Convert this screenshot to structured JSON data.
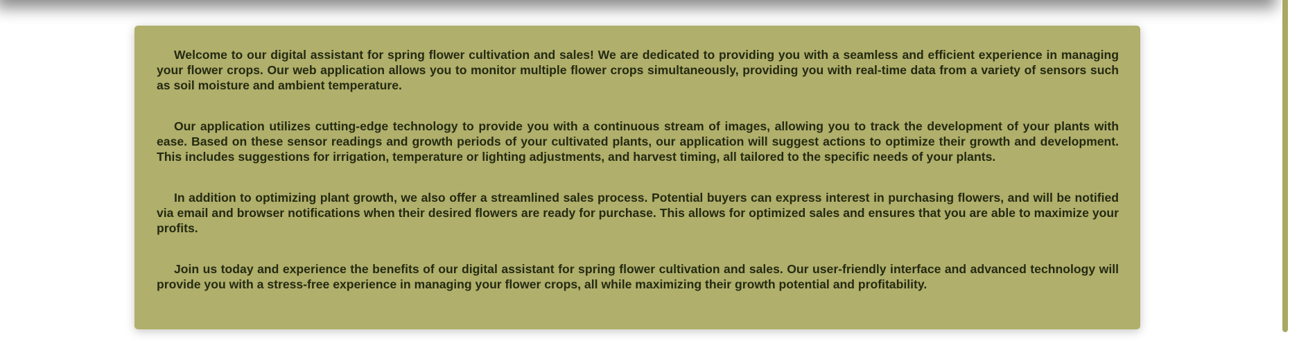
{
  "colors": {
    "card_background": "#b0af6b",
    "text": "#242a12",
    "scrollbar_thumb": "#aaa861"
  },
  "intro": {
    "paragraphs": [
      "Welcome to our digital assistant for spring flower cultivation and sales! We are dedicated to providing you with a seamless and efficient experience in managing your flower crops. Our web application allows you to monitor multiple flower crops simultaneously, providing you with real-time data from a variety of sensors such as soil moisture and ambient temperature.",
      "Our application utilizes cutting-edge technology to provide you with a continuous stream of images, allowing you to track the development of your plants with ease. Based on these sensor readings and growth periods of your cultivated plants, our application will suggest actions to optimize their growth and development. This includes suggestions for irrigation, temperature or lighting adjustments, and harvest timing, all tailored to the specific needs of your plants.",
      "In addition to optimizing plant growth, we also offer a streamlined sales process. Potential buyers can express interest in purchasing flowers, and will be notified via email and browser notifications when their desired flowers are ready for purchase. This allows for optimized sales and ensures that you are able to maximize your profits.",
      "Join us today and experience the benefits of our digital assistant for spring flower cultivation and sales. Our user-friendly interface and advanced technology will provide you with a stress-free experience in managing your flower crops, all while maximizing their growth potential and profitability."
    ]
  }
}
